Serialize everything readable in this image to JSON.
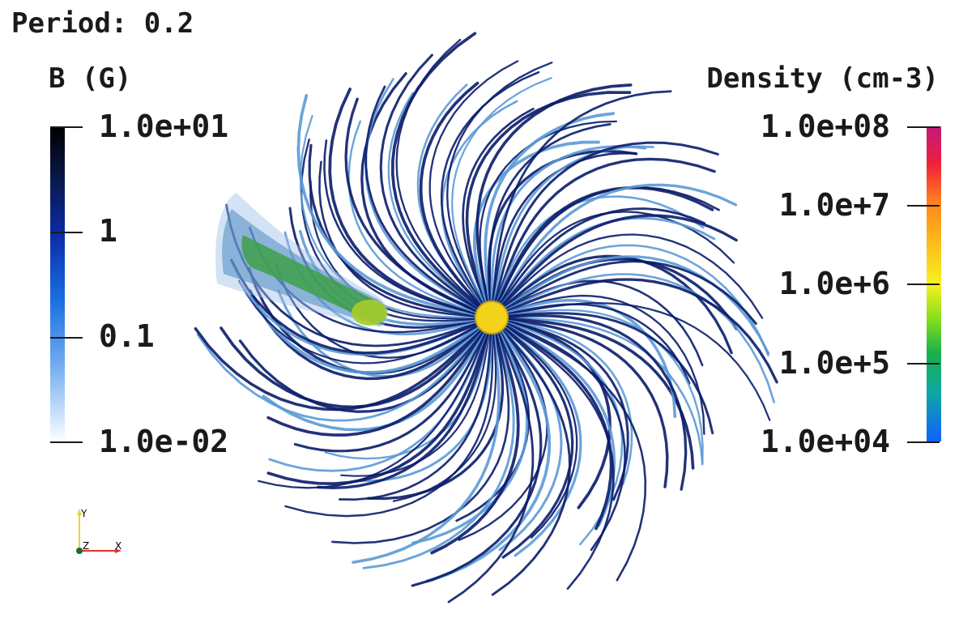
{
  "period_label": "Period: 0.2",
  "b_colorbar": {
    "title": "B (G)",
    "ticks": [
      "1.0e+01",
      "1",
      "0.1",
      "1.0e-02"
    ]
  },
  "density_colorbar": {
    "title": "Density (cm-3)",
    "ticks": [
      "1.0e+08",
      "1.0e+7",
      "1.0e+6",
      "1.0e+5",
      "1.0e+04"
    ]
  },
  "axes": {
    "y": "Y",
    "z": "Z",
    "x": "X"
  },
  "colors": {
    "field_line_dark": "#0a1c6a",
    "field_line_light": "#5b9ad6",
    "star": "#f2d21a",
    "planet_tail": "#2e9a5a"
  }
}
